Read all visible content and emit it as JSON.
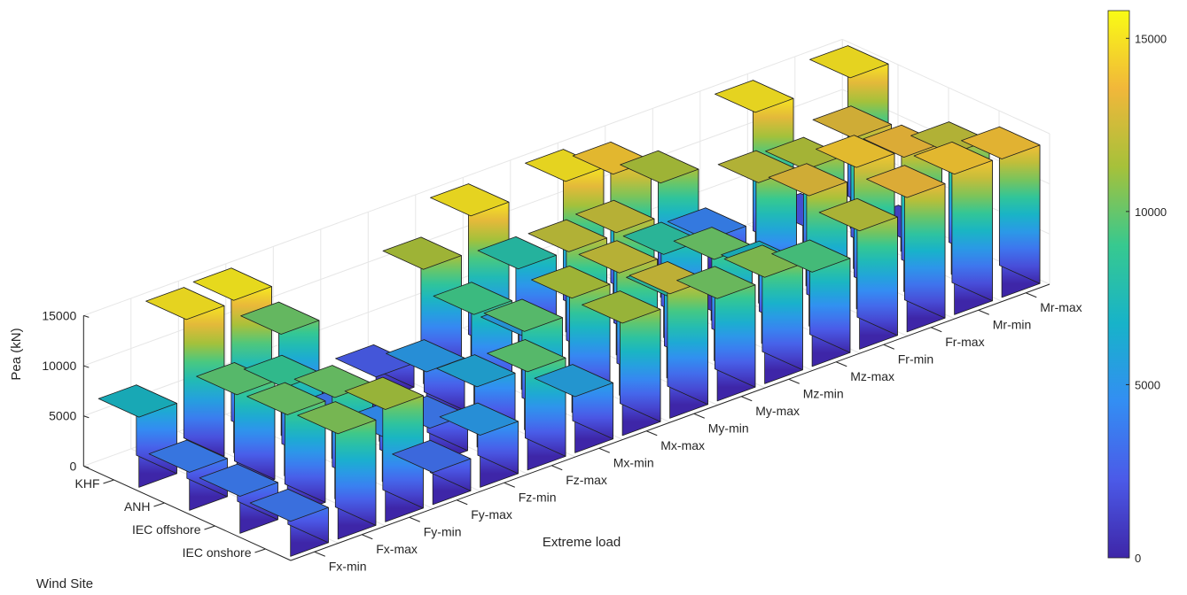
{
  "chart_data": {
    "type": "bar3d",
    "ylabel": "Pea (kN)",
    "xlabel": "Extreme load",
    "zlabel": "Wind Site",
    "load_categories": [
      "Fx-min",
      "Fx-max",
      "Fy-min",
      "Fy-max",
      "Fz-min",
      "Fz-max",
      "Mx-min",
      "Mx-max",
      "My-min",
      "My-max",
      "Mz-min",
      "Mz-max",
      "Fr-min",
      "Fr-max",
      "Mr-min",
      "Mr-max"
    ],
    "site_categories": [
      "IEC onshore",
      "IEC offshore",
      "ANH",
      "KHF"
    ],
    "value_ticks": [
      "0",
      "5000",
      "10000",
      "15000"
    ],
    "colorbar_ticks": [
      "0",
      "5000",
      "10000",
      "15000"
    ],
    "clim": [
      0,
      15800
    ],
    "zlim": [
      0,
      15000
    ],
    "values": [
      [
        3500,
        10500,
        11200,
        3200,
        5200,
        9800,
        5600,
        11200,
        12400,
        10200,
        10600,
        9400,
        11800,
        13400,
        14000,
        13800
      ],
      [
        3700,
        10100,
        10100,
        4500,
        3600,
        6000,
        9800,
        11400,
        12200,
        8200,
        10100,
        7000,
        13000,
        14100,
        13400,
        12000
      ],
      [
        3800,
        9800,
        8800,
        3500,
        1400,
        5200,
        9200,
        5400,
        12000,
        12200,
        8300,
        1000,
        12000,
        11600,
        13000,
        1400
      ],
      [
        7000,
        15000,
        15200,
        10100,
        400,
        2400,
        11400,
        15000,
        8000,
        15000,
        14000,
        11400,
        4000,
        15000,
        2000,
        15000
      ]
    ],
    "colormap": [
      "#3e26a8",
      "#4b5ae8",
      "#338ef3",
      "#17b3c9",
      "#37c98f",
      "#a6c13a",
      "#f1b73a",
      "#f9fb15"
    ]
  }
}
